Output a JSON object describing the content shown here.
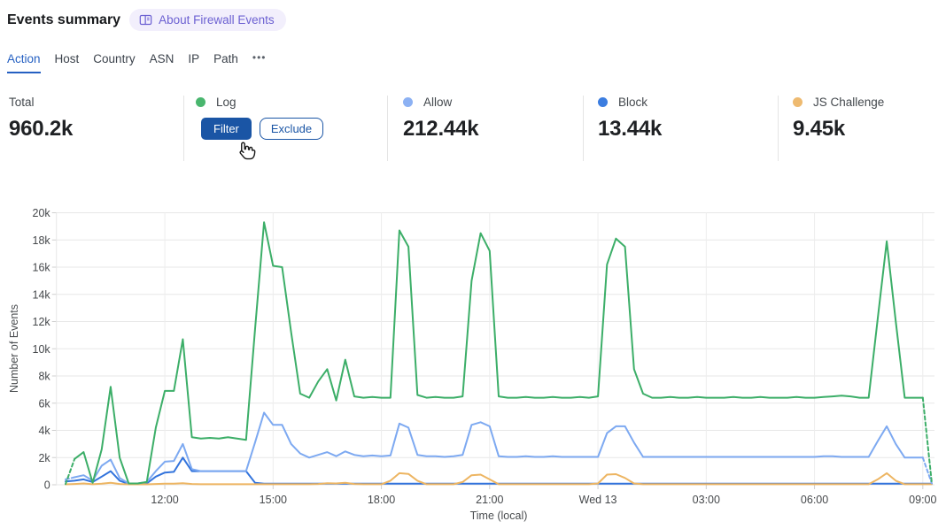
{
  "header": {
    "title": "Events summary",
    "about_label": "About Firewall Events"
  },
  "tabs": {
    "items": [
      {
        "label": "Action",
        "active": true
      },
      {
        "label": "Host",
        "active": false
      },
      {
        "label": "Country",
        "active": false
      },
      {
        "label": "ASN",
        "active": false
      },
      {
        "label": "IP",
        "active": false
      },
      {
        "label": "Path",
        "active": false
      }
    ],
    "more_label": "•••"
  },
  "stats": {
    "total": {
      "label": "Total",
      "value": "960.2k"
    },
    "log": {
      "label": "Log",
      "color": "#49b66e",
      "filter_label": "Filter",
      "exclude_label": "Exclude"
    },
    "allow": {
      "label": "Allow",
      "color": "#8cb1f3",
      "value": "212.44k"
    },
    "block": {
      "label": "Block",
      "color": "#3b7de0",
      "value": "13.44k"
    },
    "js_challenge": {
      "label": "JS Challenge",
      "color": "#eeba70",
      "value": "9.45k"
    }
  },
  "colors": {
    "accent_blue": "#1a55a5",
    "tab_active_blue": "#2560c2",
    "badge_bg": "#f2effc",
    "badge_text": "#6c61d2",
    "gridline": "#e7e7e7"
  },
  "chart_data": {
    "type": "line",
    "title": "",
    "xlabel": "Time (local)",
    "ylabel": "Number of Events",
    "ylim": [
      0,
      20000
    ],
    "grid": true,
    "legend_position": "top-stat-cards",
    "x_unit": "15-minute intervals",
    "x_start": "Tue 09:15",
    "x_end": "Wed 09:15",
    "y_ticks": [
      {
        "value": 0,
        "label": "0"
      },
      {
        "value": 2000,
        "label": "2k"
      },
      {
        "value": 4000,
        "label": "4k"
      },
      {
        "value": 6000,
        "label": "6k"
      },
      {
        "value": 8000,
        "label": "8k"
      },
      {
        "value": 10000,
        "label": "10k"
      },
      {
        "value": 12000,
        "label": "12k"
      },
      {
        "value": 14000,
        "label": "14k"
      },
      {
        "value": 16000,
        "label": "16k"
      },
      {
        "value": 18000,
        "label": "18k"
      },
      {
        "value": 20000,
        "label": "20k"
      }
    ],
    "x_ticks": [
      {
        "index": 11,
        "label": "12:00"
      },
      {
        "index": 23,
        "label": "15:00"
      },
      {
        "index": 35,
        "label": "18:00"
      },
      {
        "index": 47,
        "label": "21:00"
      },
      {
        "index": 59,
        "label": "Wed 13"
      },
      {
        "index": 71,
        "label": "03:00"
      },
      {
        "index": 83,
        "label": "06:00"
      },
      {
        "index": 95,
        "label": "09:00"
      }
    ],
    "series": [
      {
        "name": "Log",
        "color": "#3cae68",
        "dashed_ends": true,
        "values": [
          50,
          1900,
          2400,
          150,
          2600,
          7200,
          2000,
          100,
          100,
          200,
          4200,
          6900,
          6900,
          10700,
          3500,
          3400,
          3450,
          3400,
          3500,
          3400,
          3300,
          11400,
          19300,
          16100,
          16000,
          11200,
          6700,
          6400,
          7600,
          8500,
          6200,
          9200,
          6500,
          6400,
          6450,
          6400,
          6400,
          18700,
          17500,
          6600,
          6400,
          6450,
          6400,
          6400,
          6500,
          15000,
          18500,
          17200,
          6500,
          6400,
          6400,
          6450,
          6400,
          6400,
          6450,
          6400,
          6400,
          6450,
          6400,
          6500,
          16200,
          18100,
          17500,
          8500,
          6700,
          6400,
          6400,
          6450,
          6400,
          6400,
          6450,
          6400,
          6400,
          6400,
          6450,
          6400,
          6400,
          6450,
          6400,
          6400,
          6400,
          6450,
          6400,
          6400,
          6450,
          6500,
          6550,
          6500,
          6400,
          6400,
          12200,
          17900,
          12000,
          6400,
          6400,
          6400,
          100
        ]
      },
      {
        "name": "Allow",
        "color": "#7da9f1",
        "dashed_ends": true,
        "values": [
          400,
          550,
          700,
          300,
          1400,
          1850,
          500,
          100,
          100,
          200,
          1000,
          1700,
          1750,
          3000,
          1150,
          1000,
          1000,
          1000,
          1000,
          1000,
          1000,
          3100,
          5300,
          4400,
          4400,
          3000,
          2300,
          2000,
          2200,
          2400,
          2100,
          2450,
          2200,
          2100,
          2150,
          2100,
          2150,
          4500,
          4200,
          2200,
          2100,
          2100,
          2050,
          2100,
          2200,
          4400,
          4600,
          4300,
          2100,
          2050,
          2050,
          2100,
          2050,
          2050,
          2100,
          2050,
          2050,
          2050,
          2050,
          2050,
          3800,
          4300,
          4300,
          3100,
          2050,
          2050,
          2050,
          2050,
          2050,
          2050,
          2050,
          2050,
          2050,
          2050,
          2050,
          2050,
          2050,
          2050,
          2050,
          2050,
          2050,
          2050,
          2050,
          2050,
          2100,
          2100,
          2050,
          2050,
          2050,
          2050,
          3200,
          4300,
          3000,
          2000,
          2000,
          2000,
          100
        ]
      },
      {
        "name": "Block",
        "color": "#3273dc",
        "dashed_ends": false,
        "values": [
          250,
          300,
          400,
          200,
          600,
          1000,
          300,
          60,
          60,
          100,
          600,
          900,
          950,
          2000,
          1000,
          1000,
          1000,
          1000,
          1000,
          1000,
          1000,
          150,
          80,
          80,
          80,
          80,
          80,
          80,
          80,
          80,
          80,
          80,
          80,
          80,
          80,
          80,
          80,
          80,
          80,
          80,
          80,
          80,
          80,
          80,
          80,
          80,
          80,
          80,
          80,
          80,
          80,
          80,
          80,
          80,
          80,
          80,
          80,
          80,
          80,
          80,
          80,
          80,
          80,
          80,
          80,
          80,
          80,
          80,
          80,
          80,
          80,
          80,
          80,
          80,
          80,
          80,
          80,
          80,
          80,
          80,
          80,
          80,
          80,
          80,
          80,
          80,
          80,
          80,
          80,
          80,
          80,
          80,
          80,
          80,
          80,
          80,
          80
        ]
      },
      {
        "name": "JS Challenge",
        "color": "#edb562",
        "dashed_ends": false,
        "values": [
          30,
          60,
          100,
          40,
          80,
          150,
          60,
          30,
          30,
          30,
          60,
          80,
          80,
          120,
          60,
          40,
          40,
          40,
          40,
          40,
          40,
          40,
          40,
          40,
          40,
          40,
          40,
          40,
          60,
          120,
          100,
          150,
          60,
          40,
          40,
          40,
          300,
          850,
          800,
          300,
          40,
          40,
          40,
          40,
          200,
          700,
          750,
          400,
          40,
          40,
          40,
          40,
          40,
          40,
          40,
          40,
          40,
          40,
          40,
          100,
          750,
          780,
          500,
          100,
          40,
          40,
          40,
          40,
          40,
          40,
          40,
          40,
          40,
          40,
          40,
          40,
          40,
          40,
          40,
          40,
          40,
          40,
          40,
          40,
          40,
          40,
          40,
          40,
          40,
          40,
          400,
          850,
          300,
          40,
          40,
          40,
          40
        ]
      }
    ]
  }
}
